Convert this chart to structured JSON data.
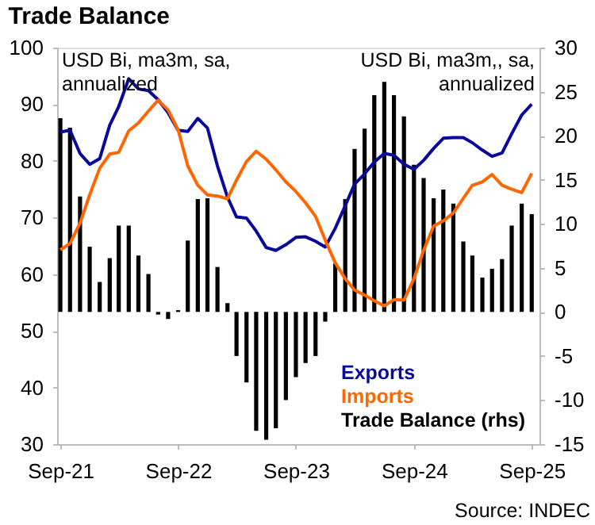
{
  "chart_data": {
    "type": "line",
    "title": "Trade Balance",
    "x": [
      "2021-09",
      "2021-10",
      "2021-11",
      "2021-12",
      "2022-01",
      "2022-02",
      "2022-03",
      "2022-04",
      "2022-05",
      "2022-06",
      "2022-07",
      "2022-08",
      "2022-09",
      "2022-10",
      "2022-11",
      "2022-12",
      "2023-01",
      "2023-02",
      "2023-03",
      "2023-04",
      "2023-05",
      "2023-06",
      "2023-07",
      "2023-08",
      "2023-09",
      "2023-10",
      "2023-11",
      "2023-12",
      "2024-01",
      "2024-02",
      "2024-03",
      "2024-04",
      "2024-05",
      "2024-06",
      "2024-07",
      "2024-08",
      "2024-09",
      "2024-10",
      "2024-11",
      "2024-12",
      "2025-01",
      "2025-02",
      "2025-03",
      "2025-04",
      "2025-05",
      "2025-06",
      "2025-07",
      "2025-08",
      "2025-09"
    ],
    "series": [
      {
        "name": "Exports",
        "color": "#0a0a9a",
        "values": [
          85.1,
          85.4,
          81.3,
          79.4,
          80.4,
          86.3,
          89.6,
          94.5,
          92.7,
          92.4,
          90.8,
          88.5,
          85.4,
          85.2,
          87.5,
          85.8,
          79.1,
          73.6,
          70.1,
          69.9,
          67.6,
          64.7,
          64.2,
          65.2,
          66.5,
          66.6,
          65.8,
          64.8,
          68.1,
          72.1,
          75.9,
          77.7,
          79.8,
          81.3,
          81.0,
          79.4,
          78.5,
          80.1,
          82.2,
          84.0,
          84.1,
          84.1,
          83.2,
          81.9,
          80.8,
          81.4,
          84.8,
          88.1,
          90.0
        ]
      },
      {
        "name": "Imports",
        "color": "#ff6600",
        "values": [
          64.3,
          65.4,
          69.0,
          74.0,
          78.7,
          81.2,
          81.5,
          85.3,
          86.7,
          88.8,
          90.7,
          89.0,
          85.5,
          79.1,
          75.7,
          74.0,
          73.8,
          73.3,
          76.6,
          79.9,
          81.7,
          80.3,
          78.4,
          76.3,
          74.6,
          72.6,
          70.2,
          66.0,
          62.0,
          59.2,
          57.2,
          56.3,
          55.3,
          54.4,
          55.5,
          55.4,
          59.2,
          64.2,
          68.5,
          69.4,
          70.8,
          73.4,
          75.7,
          76.3,
          77.6,
          75.7,
          75.0,
          74.4,
          77.8
        ]
      },
      {
        "name": "Trade Balance (rhs)",
        "type": "bar",
        "axis": "y2",
        "color": "#000000",
        "values": [
          22.0,
          20.9,
          13.1,
          7.4,
          3.4,
          6.1,
          9.8,
          9.8,
          6.4,
          4.3,
          -0.3,
          -0.8,
          0.2,
          8.1,
          12.8,
          12.9,
          5.1,
          1.0,
          -5.0,
          -8.0,
          -13.5,
          -14.5,
          -13.2,
          -10.0,
          -7.4,
          -5.8,
          -5.0,
          -1.1,
          5.5,
          12.8,
          18.5,
          20.8,
          24.6,
          26.1,
          24.6,
          22.2,
          16.7,
          15.2,
          12.9,
          13.9,
          12.3,
          8.0,
          6.4,
          3.9,
          4.9,
          6.0,
          9.8,
          12.3,
          11.1
        ]
      }
    ],
    "xlim": [
      "2021-08-22",
      "2025-09-25"
    ],
    "xticks": [
      {
        "value": "2021-09",
        "label": "Sep-21"
      },
      {
        "value": "2022-09",
        "label": "Sep-22"
      },
      {
        "value": "2023-09",
        "label": "Sep-23"
      },
      {
        "value": "2024-09",
        "label": "Sep-24"
      },
      {
        "value": "2025-09",
        "label": "Sep-25"
      }
    ],
    "ylim": [
      30,
      100
    ],
    "yticks": [
      30,
      40,
      50,
      60,
      70,
      80,
      90,
      100
    ],
    "y2lim": [
      -15,
      30
    ],
    "y2ticks": [
      -15,
      -10,
      -5,
      0,
      5,
      10,
      15,
      20,
      25,
      30
    ],
    "annotations": [
      "USD Bi, ma3m, sa, annualized",
      "USD Bi, ma3m,, sa, annualized",
      "Source: INDEC"
    ],
    "legend": "bottom right",
    "grid": false
  }
}
